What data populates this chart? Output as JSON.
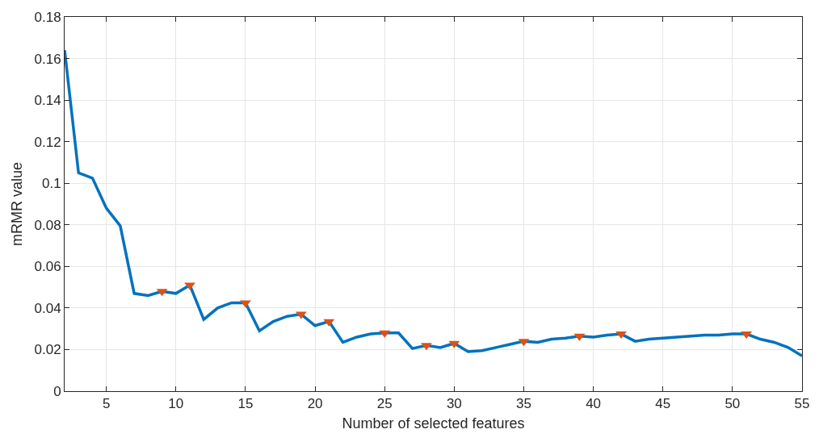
{
  "chart_data": {
    "type": "line",
    "xlabel": "Number of selected features",
    "ylabel": "mRMR value",
    "xlim": [
      2,
      55
    ],
    "xticks": [
      5,
      10,
      15,
      20,
      25,
      30,
      35,
      40,
      45,
      50,
      55
    ],
    "ylim": [
      0,
      0.18
    ],
    "yticks": [
      0,
      0.02,
      0.04,
      0.06,
      0.08,
      0.1,
      0.12,
      0.14,
      0.16,
      0.18
    ],
    "grid": true,
    "series": [
      {
        "color": "#0072bd",
        "marker": "none",
        "line_style": "solid",
        "x": [
          2,
          3,
          4,
          5,
          6,
          7,
          8,
          9,
          10,
          11,
          12,
          13,
          14,
          15,
          16,
          17,
          18,
          19,
          20,
          21,
          22,
          23,
          24,
          25,
          26,
          27,
          28,
          29,
          30,
          31,
          32,
          33,
          34,
          35,
          36,
          37,
          38,
          39,
          40,
          41,
          42,
          43,
          44,
          45,
          46,
          47,
          48,
          49,
          50,
          51,
          52,
          53,
          54,
          55
        ],
        "values": [
          0.164,
          0.105,
          0.1025,
          0.088,
          0.0795,
          0.047,
          0.046,
          0.048,
          0.047,
          0.051,
          0.0345,
          0.04,
          0.0425,
          0.0425,
          0.029,
          0.0335,
          0.036,
          0.037,
          0.0315,
          0.0335,
          0.0235,
          0.026,
          0.0275,
          0.028,
          0.028,
          0.0205,
          0.022,
          0.021,
          0.023,
          0.019,
          0.0195,
          0.021,
          0.0225,
          0.024,
          0.0235,
          0.025,
          0.0255,
          0.0265,
          0.026,
          0.027,
          0.0275,
          0.024,
          0.025,
          0.0255,
          0.026,
          0.0265,
          0.027,
          0.027,
          0.0275,
          0.0275,
          0.025,
          0.0235,
          0.021,
          0.017
        ]
      },
      {
        "type": "scatter",
        "color": "#d95319",
        "marker": "triangle",
        "x": [
          9,
          11,
          15,
          19,
          21,
          25,
          28,
          30,
          35,
          39,
          42,
          51
        ],
        "values": [
          0.048,
          0.051,
          0.0425,
          0.037,
          0.0335,
          0.028,
          0.022,
          0.023,
          0.024,
          0.0265,
          0.0275,
          0.0275
        ]
      }
    ]
  }
}
